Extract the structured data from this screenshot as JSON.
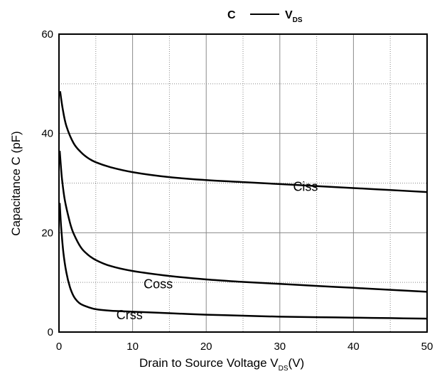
{
  "chart_data": {
    "type": "line",
    "title": {
      "left": "C",
      "right_main": "V",
      "right_sub": "DS"
    },
    "xlabel": {
      "main": "Drain to Source Voltage V",
      "sub": "DS",
      "suffix": "(V)"
    },
    "ylabel": "Capacitance C (pF)",
    "xlim": [
      0,
      50
    ],
    "ylim": [
      0,
      60
    ],
    "x_major_ticks": [
      0,
      10,
      20,
      30,
      40,
      50
    ],
    "y_major_ticks": [
      0,
      20,
      40,
      60
    ],
    "x_minor_grid": [
      5,
      15,
      25,
      35,
      45
    ],
    "y_minor_grid": [
      10,
      30,
      50
    ],
    "grid": true,
    "series": [
      {
        "name": "Ciss",
        "color": "#000000",
        "x": [
          0.15,
          0.5,
          1,
          2,
          3,
          4,
          5,
          7,
          10,
          15,
          20,
          25,
          30,
          35,
          40,
          45,
          50
        ],
        "y": [
          48.5,
          45,
          41.5,
          38,
          36.2,
          35,
          34.2,
          33.2,
          32.2,
          31.2,
          30.6,
          30.2,
          29.8,
          29.4,
          29.0,
          28.6,
          28.2
        ],
        "label_at": [
          31.8,
          28.4
        ]
      },
      {
        "name": "Coss",
        "color": "#000000",
        "x": [
          0.1,
          0.4,
          0.8,
          1.5,
          2,
          3,
          4,
          5,
          7,
          10,
          15,
          20,
          25,
          30,
          35,
          40,
          45,
          50
        ],
        "y": [
          36.5,
          31,
          26.5,
          22,
          19.8,
          17,
          15.5,
          14.5,
          13.3,
          12.3,
          11.3,
          10.6,
          10.1,
          9.7,
          9.3,
          8.9,
          8.5,
          8.1
        ],
        "label_at": [
          11.5,
          8.8
        ]
      },
      {
        "name": "Crss",
        "color": "#000000",
        "x": [
          0.1,
          0.3,
          0.6,
          1,
          1.5,
          2,
          2.5,
          3,
          4,
          5,
          7,
          10,
          15,
          20,
          25,
          30,
          35,
          40,
          45,
          50
        ],
        "y": [
          26,
          21,
          16,
          12,
          9,
          7.2,
          6.2,
          5.6,
          5.0,
          4.6,
          4.3,
          4.1,
          3.8,
          3.5,
          3.3,
          3.1,
          3.0,
          2.9,
          2.8,
          2.7
        ],
        "label_at": [
          7.8,
          2.6
        ]
      }
    ]
  }
}
